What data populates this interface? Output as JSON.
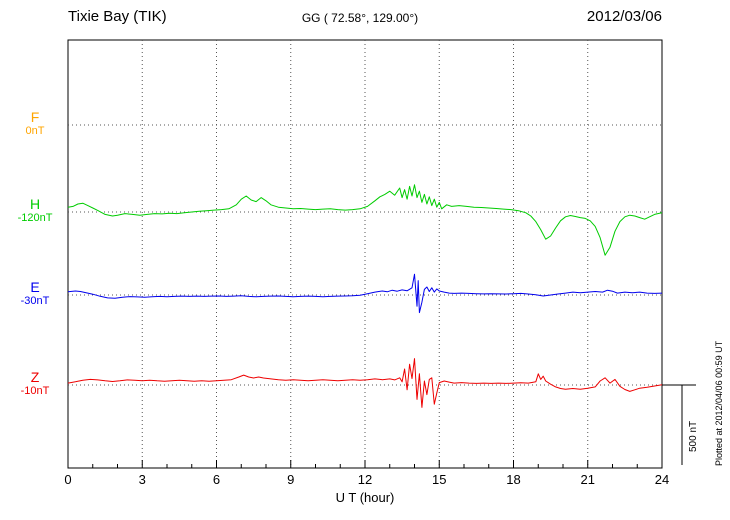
{
  "header": {
    "station": "Tixie Bay (TIK)",
    "coords": "GG ( 72.58°, 129.00°)",
    "date": "2012/03/06"
  },
  "xaxis": {
    "label": "U T (hour)"
  },
  "footer_note": "Plotted at 2012/04/06 00:59 UT",
  "chart_data": {
    "type": "line",
    "title": "Tixie Bay (TIK) magnetogram 2012/03/06",
    "xlabel": "U T (hour)",
    "x_range": [
      0,
      24
    ],
    "x_ticks": [
      0,
      3,
      6,
      9,
      12,
      15,
      18,
      21,
      24
    ],
    "grid": "dotted",
    "scale": {
      "label": "500 nT",
      "nT": 500
    },
    "series": [
      {
        "name": "F",
        "color": "#FFA500",
        "baseline_label": "0nT",
        "points": []
      },
      {
        "name": "H",
        "color": "#00CC00",
        "baseline_label": "-120nT",
        "points": [
          [
            0,
            30
          ],
          [
            0.2,
            35
          ],
          [
            0.4,
            50
          ],
          [
            0.6,
            55
          ],
          [
            0.8,
            40
          ],
          [
            1,
            25
          ],
          [
            1.2,
            10
          ],
          [
            1.5,
            -15
          ],
          [
            1.8,
            -25
          ],
          [
            2,
            -20
          ],
          [
            2.3,
            -10
          ],
          [
            2.6,
            -15
          ],
          [
            2.9,
            -20
          ],
          [
            3.2,
            -15
          ],
          [
            3.5,
            -10
          ],
          [
            3.8,
            -12
          ],
          [
            4.1,
            -8
          ],
          [
            4.4,
            -10
          ],
          [
            4.7,
            -5
          ],
          [
            5,
            0
          ],
          [
            5.3,
            5
          ],
          [
            5.6,
            8
          ],
          [
            5.9,
            12
          ],
          [
            6.2,
            15
          ],
          [
            6.5,
            20
          ],
          [
            6.8,
            45
          ],
          [
            7,
            80
          ],
          [
            7.2,
            100
          ],
          [
            7.4,
            75
          ],
          [
            7.6,
            65
          ],
          [
            7.8,
            90
          ],
          [
            8,
            70
          ],
          [
            8.2,
            45
          ],
          [
            8.5,
            30
          ],
          [
            8.8,
            25
          ],
          [
            9.1,
            20
          ],
          [
            9.4,
            22
          ],
          [
            9.7,
            18
          ],
          [
            10,
            15
          ],
          [
            10.3,
            18
          ],
          [
            10.6,
            20
          ],
          [
            10.9,
            15
          ],
          [
            11.2,
            12
          ],
          [
            11.5,
            15
          ],
          [
            11.8,
            20
          ],
          [
            12.1,
            35
          ],
          [
            12.4,
            70
          ],
          [
            12.6,
            95
          ],
          [
            12.8,
            110
          ],
          [
            13,
            130
          ],
          [
            13.2,
            105
          ],
          [
            13.4,
            150
          ],
          [
            13.5,
            90
          ],
          [
            13.6,
            140
          ],
          [
            13.7,
            80
          ],
          [
            13.8,
            160
          ],
          [
            13.9,
            100
          ],
          [
            14,
            170
          ],
          [
            14.1,
            90
          ],
          [
            14.2,
            130
          ],
          [
            14.3,
            60
          ],
          [
            14.4,
            110
          ],
          [
            14.5,
            50
          ],
          [
            14.6,
            95
          ],
          [
            14.7,
            40
          ],
          [
            14.8,
            80
          ],
          [
            14.9,
            30
          ],
          [
            15,
            60
          ],
          [
            15.1,
            20
          ],
          [
            15.3,
            45
          ],
          [
            15.5,
            35
          ],
          [
            15.8,
            40
          ],
          [
            16.1,
            35
          ],
          [
            16.4,
            30
          ],
          [
            16.7,
            28
          ],
          [
            17,
            25
          ],
          [
            17.3,
            22
          ],
          [
            17.6,
            18
          ],
          [
            17.9,
            15
          ],
          [
            18.2,
            8
          ],
          [
            18.5,
            -5
          ],
          [
            18.7,
            -25
          ],
          [
            18.9,
            -60
          ],
          [
            19.1,
            -110
          ],
          [
            19.3,
            -170
          ],
          [
            19.5,
            -150
          ],
          [
            19.7,
            -100
          ],
          [
            19.9,
            -55
          ],
          [
            20.1,
            -30
          ],
          [
            20.3,
            -22
          ],
          [
            20.5,
            -28
          ],
          [
            20.7,
            -35
          ],
          [
            20.9,
            -40
          ],
          [
            21.1,
            -55
          ],
          [
            21.3,
            -90
          ],
          [
            21.5,
            -160
          ],
          [
            21.7,
            -270
          ],
          [
            21.9,
            -220
          ],
          [
            22.1,
            -120
          ],
          [
            22.3,
            -60
          ],
          [
            22.5,
            -30
          ],
          [
            22.7,
            -20
          ],
          [
            22.9,
            -25
          ],
          [
            23.1,
            -35
          ],
          [
            23.3,
            -45
          ],
          [
            23.5,
            -30
          ],
          [
            23.7,
            -15
          ],
          [
            23.9,
            -8
          ],
          [
            24,
            -5
          ]
        ]
      },
      {
        "name": "E",
        "color": "#0000EE",
        "baseline_label": "-30nT",
        "points": [
          [
            0,
            20
          ],
          [
            0.3,
            25
          ],
          [
            0.5,
            22
          ],
          [
            0.8,
            12
          ],
          [
            1,
            5
          ],
          [
            1.3,
            -8
          ],
          [
            1.6,
            -18
          ],
          [
            1.9,
            -20
          ],
          [
            2.2,
            -14
          ],
          [
            2.5,
            -10
          ],
          [
            2.8,
            -12
          ],
          [
            3.1,
            -14
          ],
          [
            3.4,
            -11
          ],
          [
            3.7,
            -9
          ],
          [
            4,
            -11
          ],
          [
            4.3,
            -9
          ],
          [
            4.6,
            -7
          ],
          [
            4.9,
            -9
          ],
          [
            5.2,
            -7
          ],
          [
            5.5,
            -9
          ],
          [
            5.8,
            -7
          ],
          [
            6.1,
            -6
          ],
          [
            6.4,
            -9
          ],
          [
            6.7,
            -7
          ],
          [
            7,
            -5
          ],
          [
            7.3,
            -9
          ],
          [
            7.6,
            -11
          ],
          [
            7.9,
            -9
          ],
          [
            8.2,
            -7
          ],
          [
            8.5,
            -6
          ],
          [
            8.8,
            -9
          ],
          [
            9.1,
            -11
          ],
          [
            9.4,
            -9
          ],
          [
            9.7,
            -7
          ],
          [
            10,
            -9
          ],
          [
            10.3,
            -11
          ],
          [
            10.6,
            -9
          ],
          [
            10.9,
            -7
          ],
          [
            11.2,
            -6
          ],
          [
            11.5,
            -5
          ],
          [
            11.8,
            -2
          ],
          [
            12.1,
            8
          ],
          [
            12.4,
            18
          ],
          [
            12.7,
            25
          ],
          [
            12.9,
            20
          ],
          [
            13.1,
            30
          ],
          [
            13.3,
            24
          ],
          [
            13.5,
            32
          ],
          [
            13.7,
            26
          ],
          [
            13.9,
            45
          ],
          [
            14,
            130
          ],
          [
            14.1,
            -70
          ],
          [
            14.15,
            90
          ],
          [
            14.2,
            -110
          ],
          [
            14.3,
            -45
          ],
          [
            14.4,
            35
          ],
          [
            14.5,
            50
          ],
          [
            14.6,
            22
          ],
          [
            14.7,
            45
          ],
          [
            14.8,
            18
          ],
          [
            14.9,
            38
          ],
          [
            15,
            25
          ],
          [
            15.2,
            18
          ],
          [
            15.4,
            12
          ],
          [
            15.6,
            10
          ],
          [
            15.9,
            12
          ],
          [
            16.2,
            10
          ],
          [
            16.5,
            8
          ],
          [
            16.8,
            7
          ],
          [
            17.1,
            8
          ],
          [
            17.4,
            7
          ],
          [
            17.7,
            6
          ],
          [
            18,
            8
          ],
          [
            18.3,
            10
          ],
          [
            18.6,
            6
          ],
          [
            18.9,
            2
          ],
          [
            19.2,
            -6
          ],
          [
            19.5,
            0
          ],
          [
            19.8,
            6
          ],
          [
            20.1,
            12
          ],
          [
            20.4,
            18
          ],
          [
            20.7,
            14
          ],
          [
            21,
            18
          ],
          [
            21.3,
            22
          ],
          [
            21.6,
            18
          ],
          [
            21.8,
            30
          ],
          [
            22,
            24
          ],
          [
            22.2,
            12
          ],
          [
            22.5,
            18
          ],
          [
            22.8,
            14
          ],
          [
            23.1,
            18
          ],
          [
            23.4,
            12
          ],
          [
            23.7,
            10
          ],
          [
            24,
            12
          ]
        ]
      },
      {
        "name": "Z",
        "color": "#EE0000",
        "baseline_label": "-10nT",
        "points": [
          [
            0,
            12
          ],
          [
            0.3,
            20
          ],
          [
            0.6,
            30
          ],
          [
            0.9,
            35
          ],
          [
            1.2,
            32
          ],
          [
            1.5,
            26
          ],
          [
            1.8,
            22
          ],
          [
            2.1,
            26
          ],
          [
            2.4,
            32
          ],
          [
            2.7,
            30
          ],
          [
            3,
            26
          ],
          [
            3.3,
            30
          ],
          [
            3.6,
            26
          ],
          [
            3.9,
            24
          ],
          [
            4.2,
            27
          ],
          [
            4.5,
            30
          ],
          [
            4.8,
            26
          ],
          [
            5.1,
            23
          ],
          [
            5.4,
            26
          ],
          [
            5.7,
            23
          ],
          [
            6,
            26
          ],
          [
            6.3,
            30
          ],
          [
            6.6,
            33
          ],
          [
            6.9,
            50
          ],
          [
            7.1,
            62
          ],
          [
            7.3,
            50
          ],
          [
            7.5,
            44
          ],
          [
            7.7,
            50
          ],
          [
            7.9,
            44
          ],
          [
            8.2,
            38
          ],
          [
            8.5,
            33
          ],
          [
            8.8,
            30
          ],
          [
            9.1,
            33
          ],
          [
            9.4,
            30
          ],
          [
            9.7,
            27
          ],
          [
            10,
            30
          ],
          [
            10.3,
            33
          ],
          [
            10.6,
            30
          ],
          [
            10.9,
            27
          ],
          [
            11.2,
            30
          ],
          [
            11.5,
            33
          ],
          [
            11.8,
            30
          ],
          [
            12.1,
            33
          ],
          [
            12.4,
            38
          ],
          [
            12.7,
            33
          ],
          [
            13,
            38
          ],
          [
            13.2,
            32
          ],
          [
            13.4,
            45
          ],
          [
            13.5,
            20
          ],
          [
            13.6,
            100
          ],
          [
            13.7,
            -30
          ],
          [
            13.8,
            130
          ],
          [
            13.9,
            40
          ],
          [
            14,
            165
          ],
          [
            14.1,
            -90
          ],
          [
            14.2,
            70
          ],
          [
            14.3,
            -140
          ],
          [
            14.4,
            25
          ],
          [
            14.5,
            -60
          ],
          [
            14.6,
            35
          ],
          [
            14.7,
            45
          ],
          [
            14.8,
            -120
          ],
          [
            14.9,
            -50
          ],
          [
            15,
            15
          ],
          [
            15.2,
            25
          ],
          [
            15.4,
            18
          ],
          [
            15.6,
            12
          ],
          [
            15.9,
            15
          ],
          [
            16.2,
            12
          ],
          [
            16.5,
            10
          ],
          [
            16.8,
            12
          ],
          [
            17.1,
            10
          ],
          [
            17.4,
            12
          ],
          [
            17.7,
            10
          ],
          [
            18,
            12
          ],
          [
            18.3,
            14
          ],
          [
            18.6,
            12
          ],
          [
            18.9,
            20
          ],
          [
            19,
            70
          ],
          [
            19.1,
            35
          ],
          [
            19.2,
            55
          ],
          [
            19.3,
            25
          ],
          [
            19.5,
            5
          ],
          [
            19.7,
            -12
          ],
          [
            19.9,
            -22
          ],
          [
            20.1,
            -26
          ],
          [
            20.4,
            -22
          ],
          [
            20.7,
            -26
          ],
          [
            21,
            -20
          ],
          [
            21.3,
            -12
          ],
          [
            21.5,
            25
          ],
          [
            21.7,
            45
          ],
          [
            21.9,
            12
          ],
          [
            22.1,
            35
          ],
          [
            22.3,
            -8
          ],
          [
            22.5,
            -28
          ],
          [
            22.7,
            -40
          ],
          [
            22.9,
            -30
          ],
          [
            23.1,
            -20
          ],
          [
            23.4,
            -14
          ],
          [
            23.7,
            -6
          ],
          [
            24,
            2
          ]
        ]
      }
    ]
  }
}
